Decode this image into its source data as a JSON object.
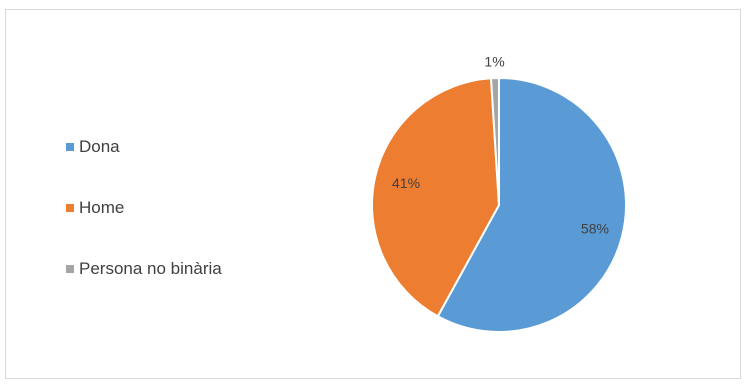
{
  "chart_data": {
    "type": "pie",
    "categories": [
      "Dona",
      "Home",
      "Persona no binària"
    ],
    "values": [
      58,
      41,
      1
    ],
    "data_labels": [
      "58%",
      "41%",
      "1%"
    ],
    "colors": [
      "#5B9BD5",
      "#ED7D31",
      "#A5A5A5"
    ],
    "title": "",
    "legend_position": "left"
  }
}
